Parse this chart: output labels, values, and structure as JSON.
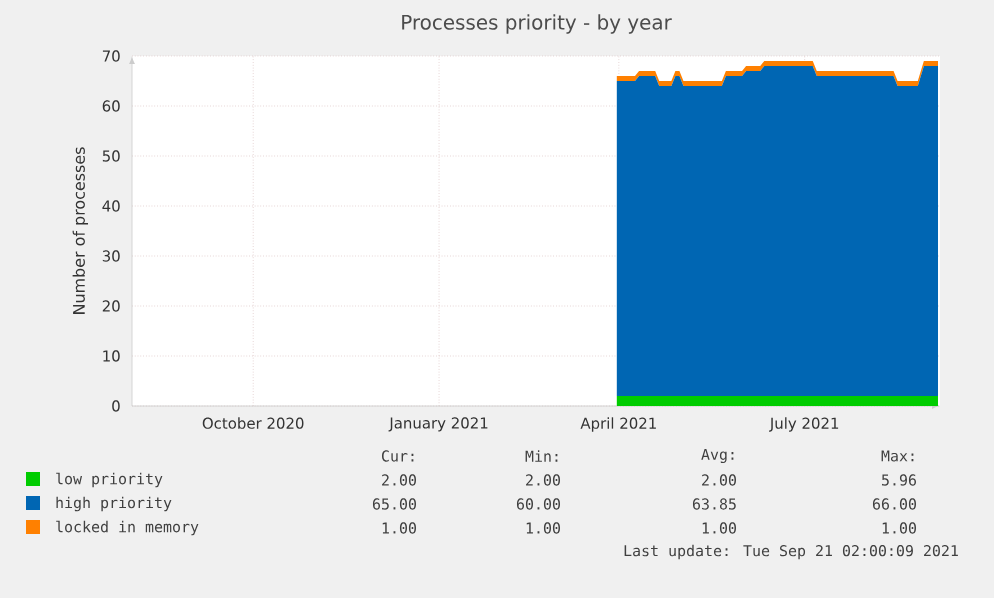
{
  "chart_data": {
    "type": "area",
    "stacked": true,
    "title": "Processes priority - by year",
    "ylabel": "Number of processes",
    "x": [
      "2021-04-14",
      "2021-04-23",
      "2021-04-25",
      "2021-05-03",
      "2021-05-05",
      "2021-05-11",
      "2021-05-13",
      "2021-05-15",
      "2021-05-17",
      "2021-06-05",
      "2021-06-07",
      "2021-06-15",
      "2021-06-17",
      "2021-06-24",
      "2021-06-26",
      "2021-07-20",
      "2021-07-22",
      "2021-08-29",
      "2021-08-31",
      "2021-09-10",
      "2021-09-13",
      "2021-09-20"
    ],
    "series": [
      {
        "name": "low priority",
        "color": "#00cc00",
        "values": [
          2,
          2,
          2,
          2,
          2,
          2,
          2,
          2,
          2,
          2,
          2,
          2,
          2,
          2,
          2,
          2,
          2,
          2,
          2,
          2,
          2,
          2
        ]
      },
      {
        "name": "high priority",
        "color": "#0066b3",
        "values": [
          63,
          63,
          64,
          64,
          62,
          62,
          64,
          64,
          62,
          62,
          64,
          64,
          65,
          65,
          66,
          66,
          64,
          64,
          62,
          62,
          66,
          66
        ]
      },
      {
        "name": "locked in memory",
        "color": "#ff8000",
        "values": [
          1,
          1,
          1,
          1,
          1,
          1,
          1,
          1,
          1,
          1,
          1,
          1,
          1,
          1,
          1,
          1,
          1,
          1,
          1,
          1,
          1,
          1
        ]
      }
    ],
    "xlim": [
      "2020-08-17",
      "2021-09-21"
    ],
    "xticks": [
      {
        "value": "2020-10-16",
        "label": "October 2020"
      },
      {
        "value": "2021-01-16",
        "label": "January 2021"
      },
      {
        "value": "2021-04-15",
        "label": "April 2021"
      },
      {
        "value": "2021-07-16",
        "label": "July 2021"
      }
    ],
    "ylim": [
      0,
      70
    ],
    "yticks": [
      0,
      10,
      20,
      30,
      40,
      50,
      60,
      70
    ],
    "grid": true,
    "legend": "bottom",
    "annotations": [
      "Cur:",
      "Min:",
      "Avg:",
      "Max:",
      "2.00",
      "2.00",
      "2.00",
      "5.96",
      "65.00",
      "60.00",
      "63.85",
      "66.00",
      "1.00",
      "1.00",
      "1.00",
      "1.00",
      "Last update: Tue Sep 21 02:00:09 2021"
    ]
  }
}
